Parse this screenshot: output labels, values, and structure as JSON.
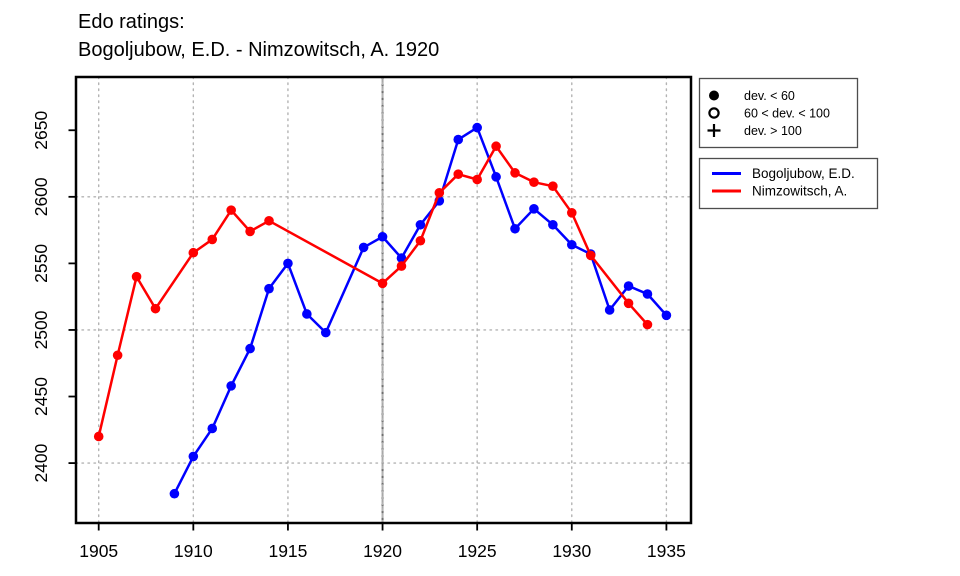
{
  "title": {
    "line1": "Edo ratings:",
    "line2": "Bogoljubow, E.D. - Nimzowitsch, A. 1920"
  },
  "colors": {
    "series1": "#0000ff",
    "series2": "#ff0000",
    "grid": "#b3b3b3",
    "event_line": "#a8a8a8",
    "event_line_dots": "#6f6f6f",
    "axis": "#000000",
    "legend_border": "#4d4d4d",
    "background": "#ffffff"
  },
  "symbol_legend": {
    "items": [
      {
        "symbol": "filled-circle",
        "label": "dev. < 60"
      },
      {
        "symbol": "open-circle",
        "label": "60 < dev. < 100"
      },
      {
        "symbol": "plus",
        "label": "dev. > 100"
      }
    ]
  },
  "series_legend": {
    "items": [
      {
        "color": "#0000ff",
        "label": "Bogoljubow, E.D."
      },
      {
        "color": "#ff0000",
        "label": "Nimzowitsch, A."
      }
    ]
  },
  "chart_data": {
    "type": "line",
    "title": "Edo ratings: Bogoljubow, E.D. - Nimzowitsch, A. 1920",
    "xlabel": "",
    "ylabel": "",
    "xlim": [
      1903.8,
      1936.3
    ],
    "ylim": [
      2355,
      2690
    ],
    "x_ticks": [
      1905,
      1910,
      1915,
      1920,
      1925,
      1930,
      1935
    ],
    "y_ticks": [
      2400,
      2450,
      2500,
      2550,
      2600,
      2650
    ],
    "x_gridlines": [
      1905,
      1910,
      1915,
      1920,
      1925,
      1930,
      1935
    ],
    "y_gridlines": [
      2400,
      2500,
      2600
    ],
    "event_line_x": 1920,
    "grid": true,
    "legend_position": "top-right-outside",
    "marker_note": "all plotted points are filled circles (dev. < 60)",
    "series": [
      {
        "name": "Bogoljubow, E.D.",
        "color": "#0000ff",
        "marker": "filled-circle",
        "points": [
          [
            1909,
            2377
          ],
          [
            1910,
            2405
          ],
          [
            1911,
            2426
          ],
          [
            1912,
            2458
          ],
          [
            1913,
            2486
          ],
          [
            1914,
            2531
          ],
          [
            1915,
            2550
          ],
          [
            1916,
            2512
          ],
          [
            1917,
            2498
          ],
          [
            1919,
            2562
          ],
          [
            1920,
            2570
          ],
          [
            1921,
            2554
          ],
          [
            1922,
            2579
          ],
          [
            1923,
            2597
          ],
          [
            1924,
            2643
          ],
          [
            1925,
            2652
          ],
          [
            1926,
            2615
          ],
          [
            1927,
            2576
          ],
          [
            1928,
            2591
          ],
          [
            1929,
            2579
          ],
          [
            1930,
            2564
          ],
          [
            1931,
            2557
          ],
          [
            1932,
            2515
          ],
          [
            1933,
            2533
          ],
          [
            1934,
            2527
          ],
          [
            1935,
            2511
          ]
        ]
      },
      {
        "name": "Nimzowitsch, A.",
        "color": "#ff0000",
        "marker": "filled-circle",
        "points": [
          [
            1905,
            2420
          ],
          [
            1906,
            2481
          ],
          [
            1907,
            2540
          ],
          [
            1908,
            2516
          ],
          [
            1910,
            2558
          ],
          [
            1911,
            2568
          ],
          [
            1912,
            2590
          ],
          [
            1913,
            2574
          ],
          [
            1914,
            2582
          ],
          [
            1920,
            2535
          ],
          [
            1921,
            2548
          ],
          [
            1922,
            2567
          ],
          [
            1923,
            2603
          ],
          [
            1924,
            2617
          ],
          [
            1925,
            2613
          ],
          [
            1926,
            2638
          ],
          [
            1927,
            2618
          ],
          [
            1928,
            2611
          ],
          [
            1929,
            2608
          ],
          [
            1930,
            2588
          ],
          [
            1931,
            2556
          ],
          [
            1933,
            2520
          ],
          [
            1934,
            2504
          ]
        ]
      }
    ]
  }
}
